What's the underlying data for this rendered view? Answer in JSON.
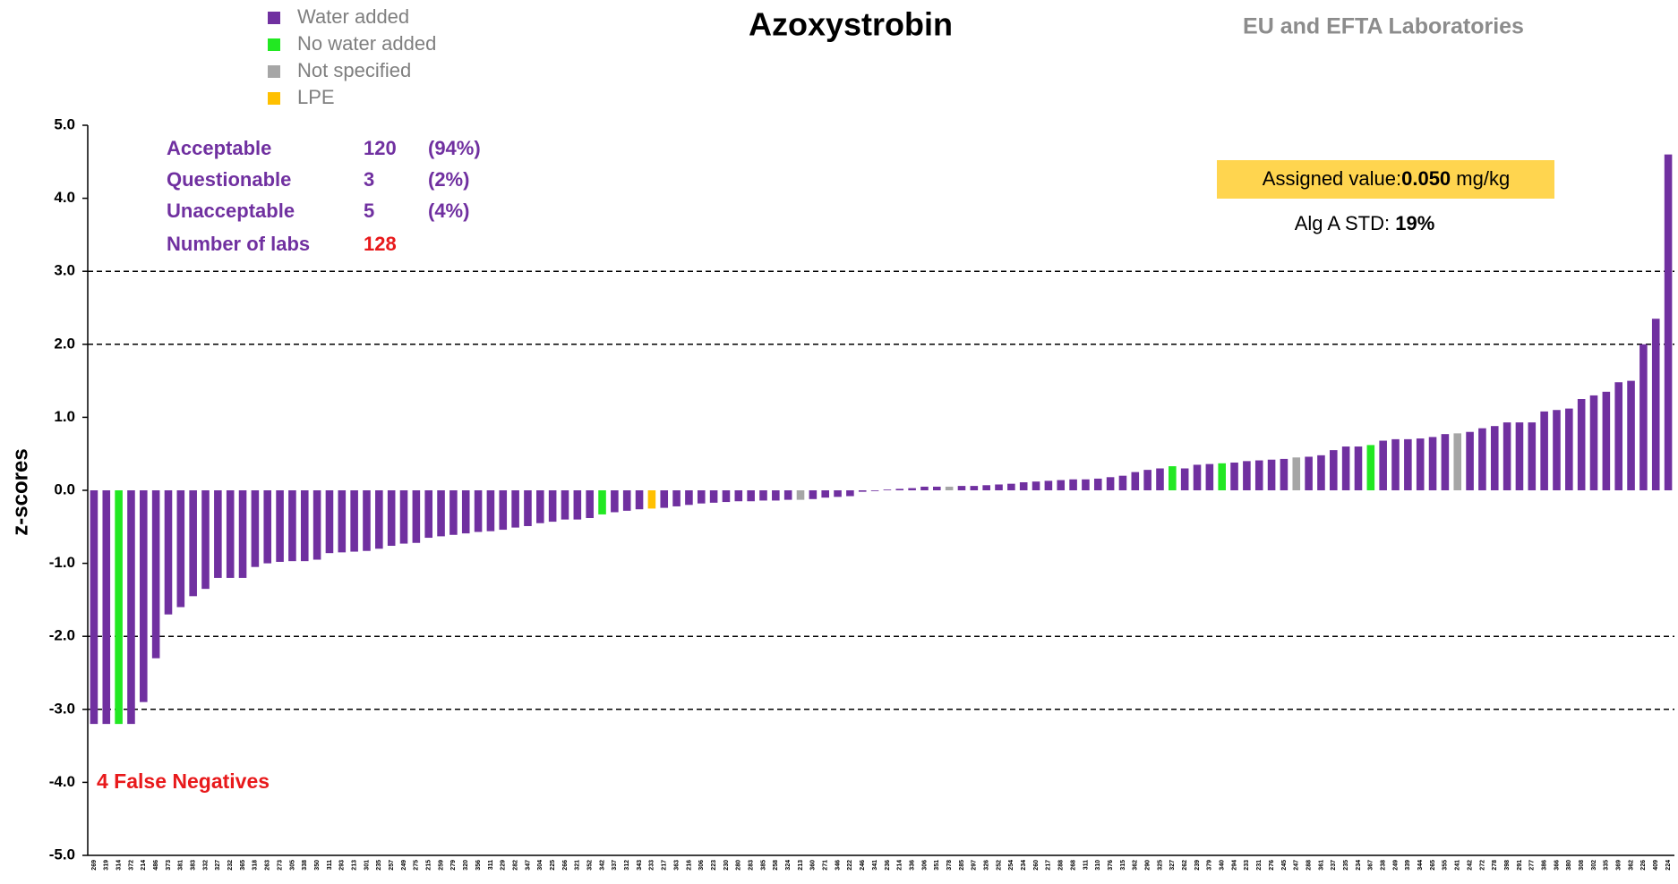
{
  "chart_data": {
    "type": "bar",
    "title": "Azoxystrobin",
    "subtitle": "EU and EFTA Laboratories",
    "y_label": "z-scores",
    "annotation": "4 False Negatives",
    "stats": [
      {
        "label": "Acceptable",
        "count": 120,
        "percent": "(94%)"
      },
      {
        "label": "Questionable",
        "count": 3,
        "percent": "(2%)"
      },
      {
        "label": "Unacceptable",
        "count": 5,
        "percent": "(4%)"
      },
      {
        "label": "Number of labs",
        "count": 128
      }
    ],
    "assigned_value": {
      "label": "Assigned value:",
      "value": "0.050",
      "unit": "mg/kg"
    },
    "std": {
      "label": "Alg A STD:",
      "value": "19%"
    },
    "ylim": [
      -5,
      5
    ],
    "yticks": [
      {
        "value": 5,
        "label": "5.0"
      },
      {
        "value": 4,
        "label": "4.0"
      },
      {
        "value": 3,
        "label": "3.0"
      },
      {
        "value": 2,
        "label": "2.0"
      },
      {
        "value": 1,
        "label": "1.0"
      },
      {
        "value": 0,
        "label": "0.0"
      },
      {
        "value": -1,
        "label": "-1.0"
      },
      {
        "value": -2,
        "label": "-2.0"
      },
      {
        "value": -3,
        "label": "-3.0"
      },
      {
        "value": -4,
        "label": "-4.0"
      },
      {
        "value": -5,
        "label": "-5.0"
      }
    ],
    "reference_lines": [
      3,
      2,
      -2,
      -3
    ],
    "legend": "top-left",
    "categories": [
      "269",
      "319",
      "314",
      "372",
      "214",
      "486",
      "373",
      "381",
      "383",
      "332",
      "327",
      "232",
      "365",
      "318",
      "263",
      "273",
      "305",
      "338",
      "350",
      "311",
      "293",
      "213",
      "301",
      "235",
      "257",
      "249",
      "275",
      "215",
      "259",
      "279",
      "320",
      "356",
      "311",
      "229",
      "282",
      "347",
      "304",
      "225",
      "266",
      "321",
      "352",
      "342",
      "337",
      "312",
      "343",
      "233",
      "217",
      "363",
      "216",
      "306",
      "223",
      "230",
      "280",
      "283",
      "385",
      "258",
      "324",
      "213",
      "360",
      "271",
      "346",
      "222",
      "246",
      "341",
      "236",
      "214",
      "336",
      "306",
      "351",
      "378",
      "285",
      "297",
      "326",
      "252",
      "254",
      "234",
      "260",
      "217",
      "288",
      "268",
      "311",
      "310",
      "376",
      "315",
      "362",
      "290",
      "325",
      "327",
      "262",
      "239",
      "379",
      "340",
      "294",
      "233",
      "231",
      "276",
      "245",
      "247",
      "288",
      "361",
      "237",
      "235",
      "234",
      "367",
      "238",
      "249",
      "339",
      "344",
      "265",
      "355",
      "241",
      "242",
      "272",
      "278",
      "398",
      "291",
      "277",
      "386",
      "366",
      "380",
      "308",
      "302",
      "335",
      "369",
      "362",
      "226",
      "409",
      "224"
    ],
    "series": [
      {
        "name": "Water added",
        "color": "#7030a0",
        "values": [
          -3.2,
          -3.2,
          null,
          -3.2,
          -2.9,
          -2.3,
          -1.7,
          -1.6,
          -1.45,
          -1.35,
          -1.2,
          -1.2,
          -1.2,
          -1.05,
          -1.0,
          -0.98,
          -0.97,
          -0.97,
          -0.95,
          -0.86,
          -0.85,
          -0.84,
          -0.83,
          -0.8,
          -0.76,
          -0.73,
          -0.72,
          -0.65,
          -0.63,
          -0.61,
          -0.59,
          -0.57,
          -0.56,
          -0.54,
          -0.51,
          -0.49,
          -0.45,
          -0.43,
          -0.4,
          -0.4,
          -0.38,
          null,
          -0.3,
          -0.28,
          -0.26,
          null,
          -0.24,
          -0.22,
          -0.2,
          -0.18,
          -0.17,
          -0.16,
          -0.15,
          -0.15,
          -0.14,
          -0.14,
          -0.13,
          null,
          -0.12,
          -0.1,
          -0.09,
          -0.08,
          -0.02,
          -0.01,
          0.01,
          0.02,
          0.03,
          0.05,
          0.05,
          null,
          0.06,
          0.06,
          0.07,
          0.08,
          0.09,
          0.11,
          0.12,
          0.13,
          0.14,
          0.15,
          0.15,
          0.16,
          0.18,
          0.2,
          0.25,
          0.28,
          0.3,
          null,
          0.3,
          0.35,
          0.36,
          null,
          0.38,
          0.4,
          0.41,
          0.42,
          0.43,
          null,
          0.46,
          0.48,
          0.55,
          0.6,
          0.6,
          null,
          0.68,
          0.7,
          0.7,
          0.71,
          0.73,
          0.77,
          null,
          0.8,
          0.85,
          0.88,
          0.93,
          0.93,
          0.93,
          1.08,
          1.1,
          1.12,
          1.25,
          1.3,
          1.35,
          1.48,
          1.5,
          2.0,
          2.35,
          4.6
        ]
      },
      {
        "name": "No water added",
        "color": "#22e822",
        "values": [
          null,
          null,
          -3.2,
          null,
          null,
          null,
          null,
          null,
          null,
          null,
          null,
          null,
          null,
          null,
          null,
          null,
          null,
          null,
          null,
          null,
          null,
          null,
          null,
          null,
          null,
          null,
          null,
          null,
          null,
          null,
          null,
          null,
          null,
          null,
          null,
          null,
          null,
          null,
          null,
          null,
          null,
          -0.33,
          null,
          null,
          null,
          null,
          null,
          null,
          null,
          null,
          null,
          null,
          null,
          null,
          null,
          null,
          null,
          null,
          null,
          null,
          null,
          null,
          null,
          null,
          null,
          null,
          null,
          null,
          null,
          null,
          null,
          null,
          null,
          null,
          null,
          null,
          null,
          null,
          null,
          null,
          null,
          null,
          null,
          null,
          null,
          null,
          null,
          0.33,
          null,
          null,
          null,
          0.37,
          null,
          null,
          null,
          null,
          null,
          null,
          null,
          null,
          null,
          null,
          null,
          0.62,
          null,
          null,
          null,
          null,
          null,
          null,
          null,
          null,
          null,
          null,
          null,
          null,
          null,
          null,
          null,
          null,
          null,
          null,
          null,
          null,
          null,
          null,
          null,
          null
        ]
      },
      {
        "name": "Not specified",
        "color": "#a6a6a6",
        "values": [
          null,
          null,
          null,
          null,
          null,
          null,
          null,
          null,
          null,
          null,
          null,
          null,
          null,
          null,
          null,
          null,
          null,
          null,
          null,
          null,
          null,
          null,
          null,
          null,
          null,
          null,
          null,
          null,
          null,
          null,
          null,
          null,
          null,
          null,
          null,
          null,
          null,
          null,
          null,
          null,
          null,
          null,
          null,
          null,
          null,
          null,
          null,
          null,
          null,
          null,
          null,
          null,
          null,
          null,
          null,
          null,
          null,
          -0.13,
          null,
          null,
          null,
          null,
          null,
          null,
          null,
          null,
          null,
          null,
          null,
          0.05,
          null,
          null,
          null,
          null,
          null,
          null,
          null,
          null,
          null,
          null,
          null,
          null,
          null,
          null,
          null,
          null,
          null,
          null,
          null,
          null,
          null,
          null,
          null,
          null,
          null,
          null,
          null,
          0.45,
          null,
          null,
          null,
          null,
          null,
          null,
          null,
          null,
          null,
          null,
          null,
          null,
          0.78,
          null,
          null,
          null,
          null,
          null,
          null,
          null,
          null,
          null,
          null,
          null,
          null,
          null,
          null,
          null,
          null,
          null
        ]
      },
      {
        "name": "LPE",
        "color": "#ffc000",
        "values": [
          null,
          null,
          null,
          null,
          null,
          null,
          null,
          null,
          null,
          null,
          null,
          null,
          null,
          null,
          null,
          null,
          null,
          null,
          null,
          null,
          null,
          null,
          null,
          null,
          null,
          null,
          null,
          null,
          null,
          null,
          null,
          null,
          null,
          null,
          null,
          null,
          null,
          null,
          null,
          null,
          null,
          null,
          null,
          null,
          null,
          -0.25,
          null,
          null,
          null,
          null,
          null,
          null,
          null,
          null,
          null,
          null,
          null,
          null,
          null,
          null,
          null,
          null,
          null,
          null,
          null,
          null,
          null,
          null,
          null,
          null,
          null,
          null,
          null,
          null,
          null,
          null,
          null,
          null,
          null,
          null,
          null,
          null,
          null,
          null,
          null,
          null,
          null,
          null,
          null,
          null,
          null,
          null,
          null,
          null,
          null,
          null,
          null,
          null,
          null,
          null,
          null,
          null,
          null,
          null,
          null,
          null,
          null,
          null,
          null,
          null,
          null,
          null,
          null,
          null,
          null,
          null,
          null,
          null,
          null,
          null,
          null,
          null,
          null,
          null,
          null,
          null,
          null,
          null
        ]
      }
    ]
  }
}
